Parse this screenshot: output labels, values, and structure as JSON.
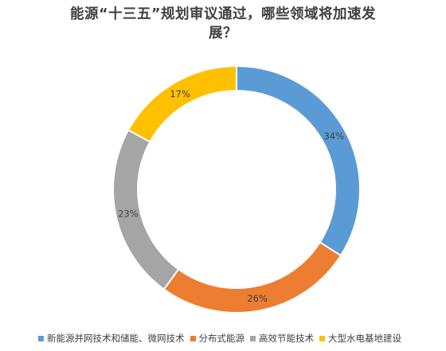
{
  "chart_data": {
    "type": "pie",
    "variant": "donut",
    "title": "能源“十三五”规划审议通过，哪些领域将加速发展？",
    "categories": [
      "新能源并网技术和储能、微网技术",
      "分布式能源",
      "高效节能技术",
      "大型水电基地建设"
    ],
    "series": [
      {
        "values": [
          34,
          26,
          23,
          17
        ],
        "labels": [
          "34%",
          "26%",
          "23%",
          "17%"
        ]
      }
    ],
    "colors": [
      "#5B9BD5",
      "#ED7D31",
      "#A5A5A5",
      "#FFC000"
    ],
    "legend_position": "bottom"
  }
}
